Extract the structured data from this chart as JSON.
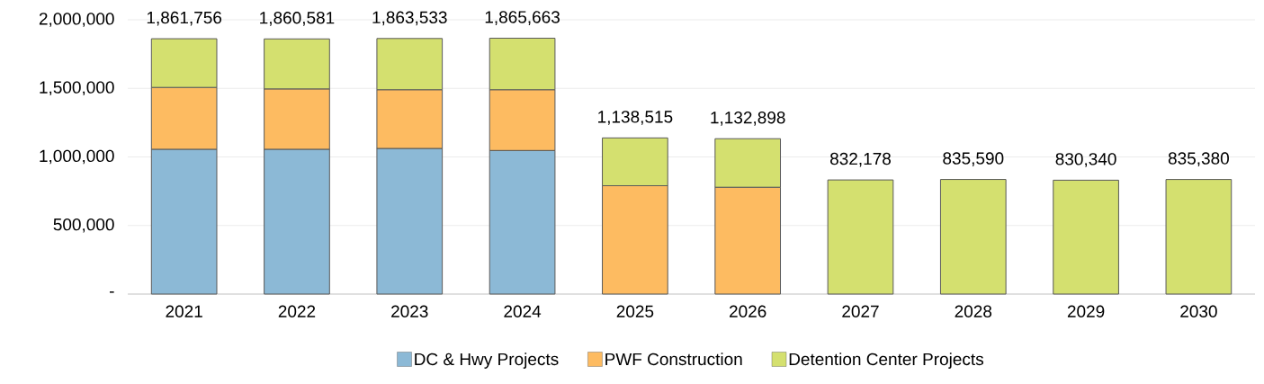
{
  "chart_data": {
    "type": "bar",
    "stacked": true,
    "categories": [
      "2021",
      "2022",
      "2023",
      "2024",
      "2025",
      "2026",
      "2027",
      "2028",
      "2029",
      "2030"
    ],
    "series": [
      {
        "name": "DC & Hwy Projects",
        "color": "#8cb9d6",
        "values": [
          1056000,
          1056000,
          1062000,
          1047000,
          null,
          null,
          null,
          null,
          null,
          null
        ]
      },
      {
        "name": "PWF Construction",
        "color": "#fdbb61",
        "values": [
          451000,
          440000,
          428000,
          443000,
          790000,
          779000,
          null,
          null,
          null,
          null
        ]
      },
      {
        "name": "Detention Center Projects",
        "color": "#d4e06f",
        "values": [
          354756,
          364581,
          373533,
          375663,
          348515,
          353898,
          832178,
          835590,
          830340,
          835380
        ]
      }
    ],
    "totals": [
      "1,861,756",
      "1,860,581",
      "1,863,533",
      "1,865,663",
      "1,138,515",
      "1,132,898",
      "832,178",
      "835,590",
      "830,340",
      "835,380"
    ],
    "ylim": [
      0,
      2000000
    ],
    "yticks": [
      {
        "value": 0,
        "label": "-"
      },
      {
        "value": 500000,
        "label": "500,000"
      },
      {
        "value": 1000000,
        "label": "1,000,000"
      },
      {
        "value": 1500000,
        "label": "1,500,000"
      },
      {
        "value": 2000000,
        "label": "2,000,000"
      }
    ],
    "grid": "y",
    "legend": "bottom"
  }
}
